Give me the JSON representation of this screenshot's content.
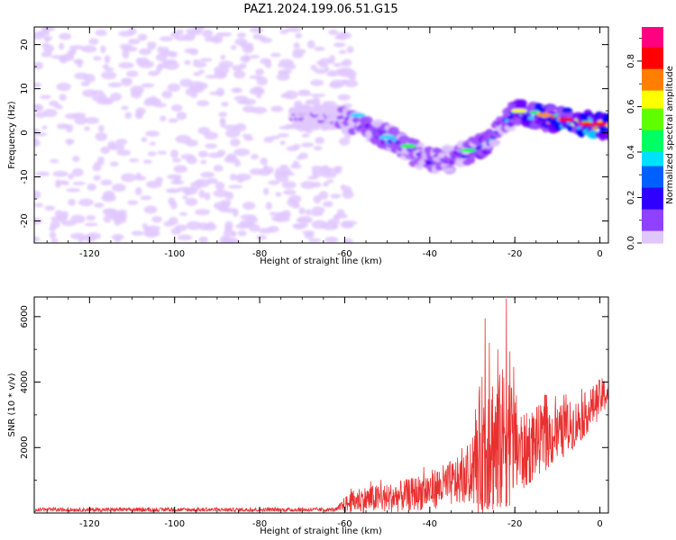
{
  "chart_data": [
    {
      "type": "heatmap",
      "title": "PAZ1.2024.199.06.51.G15",
      "xlabel": "Height of straight line (km)",
      "ylabel": "Frequency (Hz)",
      "xlim": [
        -133,
        2
      ],
      "ylim": [
        -25,
        24
      ],
      "x_ticks": [
        -120,
        -100,
        -80,
        -60,
        -40,
        -20,
        0
      ],
      "y_ticks": [
        -20,
        -10,
        0,
        10,
        20
      ],
      "colorbar": {
        "label": "Normalized spectral amplitude",
        "range": [
          0,
          0.95
        ],
        "ticks": [
          0.0,
          0.2,
          0.4,
          0.6,
          0.8
        ],
        "colors": [
          "#ffffff",
          "#e0c8ff",
          "#a050ff",
          "#7000ff",
          "#0000ff",
          "#00d8ff",
          "#00ff40",
          "#ffff00",
          "#ff9000",
          "#ff0000",
          "#ff0080"
        ]
      },
      "ridge": {
        "x": [
          -130,
          -72,
          -60,
          -55,
          -50,
          -45,
          -40,
          -35,
          -30,
          -26,
          -23,
          -20,
          -15,
          -10,
          -5,
          0,
          2
        ],
        "y": [
          5,
          4,
          3,
          1,
          -1,
          -4,
          -6,
          -6,
          -4,
          -2,
          2,
          5,
          4,
          3,
          2,
          2,
          1
        ],
        "amplitude": [
          0.15,
          0.18,
          0.3,
          0.4,
          0.45,
          0.4,
          0.4,
          0.35,
          0.45,
          0.5,
          0.4,
          0.6,
          0.7,
          0.85,
          0.8,
          0.85,
          0.8
        ]
      },
      "noise_region_x": [
        -133,
        -60
      ],
      "noise_amplitude": 0.15
    },
    {
      "type": "line",
      "xlabel": "Height of straight line (km)",
      "ylabel": "SNR (10 * v/v)",
      "xlim": [
        -133,
        2
      ],
      "ylim": [
        0,
        6600
      ],
      "x_ticks": [
        -120,
        -100,
        -80,
        -60,
        -40,
        -20,
        0
      ],
      "y_ticks": [
        2000,
        4000,
        6000
      ],
      "color": "#e83030",
      "envelope": {
        "x": [
          -133,
          -62,
          -60,
          -57,
          -50,
          -45,
          -40,
          -35,
          -30,
          -28,
          -26,
          -24,
          -22,
          -20,
          -18,
          -15,
          -10,
          -5,
          0,
          2
        ],
        "mean": [
          100,
          100,
          250,
          400,
          450,
          550,
          700,
          900,
          1100,
          2000,
          2300,
          2000,
          2400,
          2100,
          1800,
          2200,
          2400,
          2800,
          3500,
          3700
        ],
        "amplitude": [
          60,
          60,
          250,
          400,
          450,
          500,
          600,
          700,
          800,
          2200,
          2300,
          2200,
          2300,
          1700,
          1200,
          1100,
          900,
          700,
          600,
          500
        ]
      },
      "peaks": [
        {
          "x": -27,
          "y": 5950
        },
        {
          "x": -22,
          "y": 6550
        },
        {
          "x": -26,
          "y": 5200
        },
        {
          "x": -24,
          "y": 5000
        }
      ]
    }
  ]
}
